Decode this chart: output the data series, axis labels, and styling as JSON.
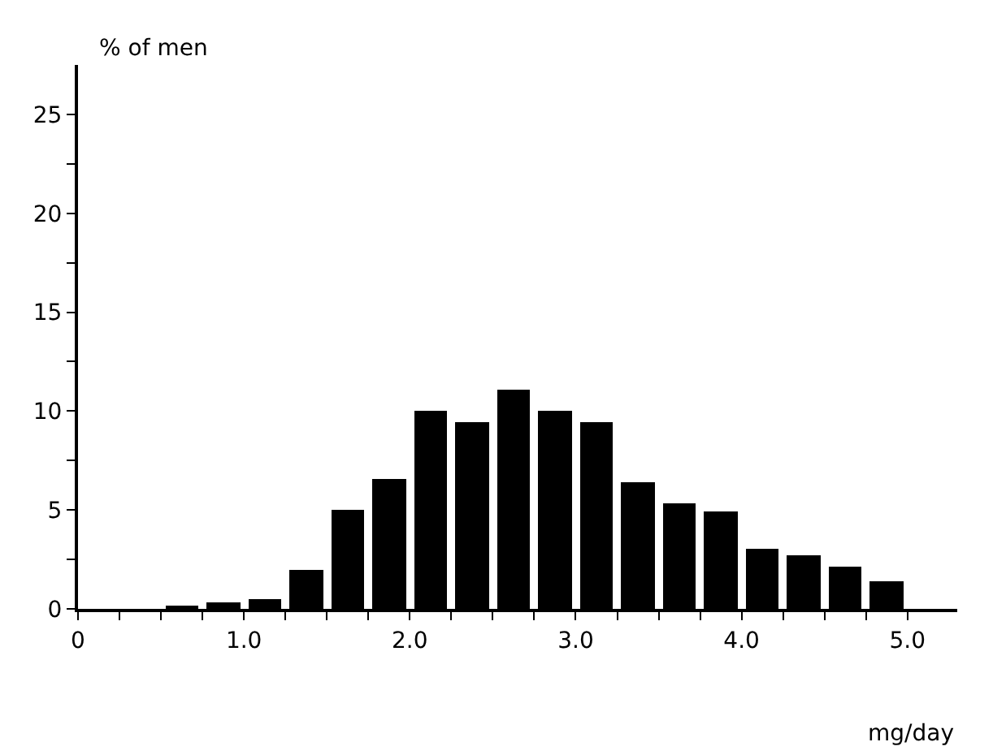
{
  "chart_data": {
    "type": "histogram",
    "ylabel": "% of men",
    "xlabel": "mg/day",
    "bins": [
      0.5,
      0.75,
      1.0,
      1.25,
      1.5,
      1.75,
      2.0,
      2.25,
      2.5,
      2.75,
      3.0,
      3.25,
      3.5,
      3.75,
      4.0,
      4.25,
      4.5,
      4.75,
      5.0
    ],
    "values": [
      0.1,
      0.3,
      0.5,
      2.0,
      5.0,
      6.6,
      10.0,
      9.4,
      11.1,
      10.0,
      9.4,
      6.4,
      5.3,
      4.9,
      3.0,
      2.7,
      2.1,
      1.4
    ],
    "color": "#000000",
    "xlim": [
      0,
      5.3
    ],
    "ylim": [
      0,
      27.5
    ],
    "xticks": [
      {
        "value": 0,
        "label": "0"
      },
      {
        "value": 0.25,
        "label": null
      },
      {
        "value": 0.5,
        "label": null
      },
      {
        "value": 0.75,
        "label": null
      },
      {
        "value": 1,
        "label": "1.0"
      },
      {
        "value": 1.25,
        "label": null
      },
      {
        "value": 1.5,
        "label": null
      },
      {
        "value": 1.75,
        "label": null
      },
      {
        "value": 2,
        "label": "2.0"
      },
      {
        "value": 2.25,
        "label": null
      },
      {
        "value": 2.5,
        "label": null
      },
      {
        "value": 2.75,
        "label": null
      },
      {
        "value": 3,
        "label": "3.0"
      },
      {
        "value": 3.25,
        "label": null
      },
      {
        "value": 3.5,
        "label": null
      },
      {
        "value": 3.75,
        "label": null
      },
      {
        "value": 4,
        "label": "4.0"
      },
      {
        "value": 4.25,
        "label": null
      },
      {
        "value": 4.5,
        "label": null
      },
      {
        "value": 4.75,
        "label": null
      },
      {
        "value": 5,
        "label": "5.0"
      }
    ],
    "yticks": [
      0,
      {
        "value": 2.5,
        "label": null
      },
      5,
      {
        "value": 7.5,
        "label": null
      },
      10,
      {
        "value": 12.5,
        "label": null
      },
      15,
      {
        "value": 17.5,
        "label": null
      },
      20,
      {
        "value": 22.5,
        "label": null
      },
      25
    ],
    "legend": false
  }
}
